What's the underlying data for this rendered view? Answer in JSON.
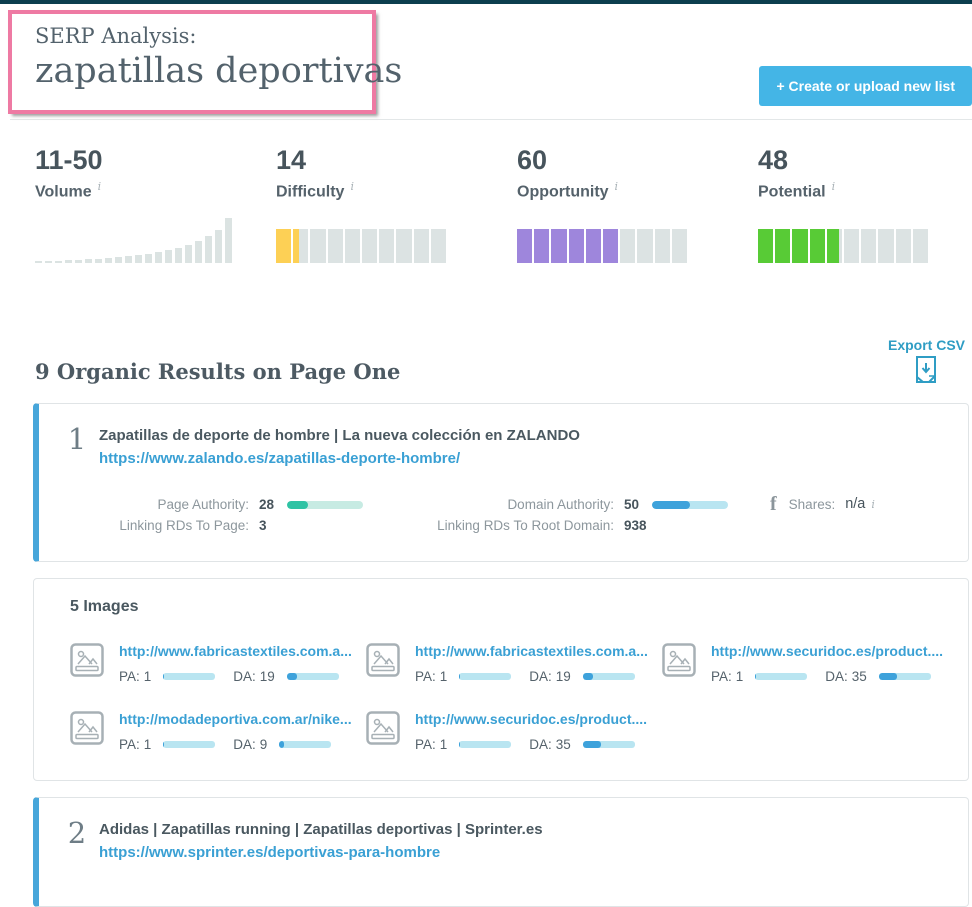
{
  "colors": {
    "topbar": "#0c3e4e",
    "annotation_pink": "#ee7aa3",
    "button_blue": "#44b5e6",
    "accent_blue": "#47a6da",
    "link_blue": "#3aa0d4",
    "export_blue": "#2f9dc4",
    "progress_fill": "#3ea2db",
    "progress_track": "#b9e5f1"
  },
  "header": {
    "eyebrow": "SERP Analysis:",
    "keyword": "zapatillas deportivas",
    "create_button": "+ Create or upload new list"
  },
  "icons": {
    "info": "i",
    "facebook": "f"
  },
  "metrics": {
    "items": [
      {
        "value": "11-50",
        "label": "Volume",
        "histogram": [
          2,
          2,
          2,
          3,
          3,
          4,
          4,
          5,
          6,
          7,
          8,
          9,
          11,
          13,
          15,
          18,
          22,
          27,
          33,
          45
        ],
        "bar_color": "#dbe3e2"
      },
      {
        "value": "14",
        "label": "Difficulty",
        "percent": 14,
        "segments": 10,
        "fill_color": "#fdd055",
        "track_color": "#dce3e3"
      },
      {
        "value": "60",
        "label": "Opportunity",
        "percent": 60,
        "segments": 10,
        "fill_color": "#9e86dc",
        "track_color": "#dce3e3"
      },
      {
        "value": "48",
        "label": "Potential",
        "percent": 48,
        "segments": 10,
        "fill_color": "#58cb36",
        "track_color": "#dce3e3"
      }
    ]
  },
  "results": {
    "heading": "9 Organic Results on Page One",
    "export_label": "Export CSV"
  },
  "organic": [
    {
      "rank": "1",
      "title": "Zapatillas de deporte de hombre | La nueva colección en ZALANDO",
      "url": "https://www.zalando.es/zapatillas-deporte-hombre/",
      "metrics": {
        "page_authority": {
          "label": "Page Authority:",
          "value": "28",
          "percent": 28,
          "fill_color": "#2fc3a4",
          "track_color": "#c7ebe3"
        },
        "linking_rds_page": {
          "label": "Linking RDs To Page:",
          "value": "3"
        },
        "domain_authority": {
          "label": "Domain Authority:",
          "value": "50",
          "percent": 50,
          "fill_color": "#3ea2db",
          "track_color": "#b9e5f1"
        },
        "linking_rds_root": {
          "label": "Linking RDs To Root Domain:",
          "value": "938"
        },
        "shares": {
          "label": "Shares:",
          "value": "n/a"
        }
      }
    },
    {
      "rank": "2",
      "title": "Adidas | Zapatillas running | Zapatillas deportivas | Sprinter.es",
      "url": "https://www.sprinter.es/deportivas-para-hombre"
    }
  ],
  "images": {
    "heading": "5 Images",
    "pa_label": "PA:",
    "da_label": "DA:",
    "items": [
      {
        "url": "http://www.fabricastextiles.com.a...",
        "pa": "1",
        "pa_percent": 1,
        "da": "19",
        "da_percent": 19
      },
      {
        "url": "http://www.fabricastextiles.com.a...",
        "pa": "1",
        "pa_percent": 1,
        "da": "19",
        "da_percent": 19
      },
      {
        "url": "http://www.securidoc.es/product....",
        "pa": "1",
        "pa_percent": 1,
        "da": "35",
        "da_percent": 35
      },
      {
        "url": "http://modadeportiva.com.ar/nike...",
        "pa": "1",
        "pa_percent": 1,
        "da": "9",
        "da_percent": 9
      },
      {
        "url": "http://www.securidoc.es/product....",
        "pa": "1",
        "pa_percent": 1,
        "da": "35",
        "da_percent": 35
      }
    ]
  }
}
